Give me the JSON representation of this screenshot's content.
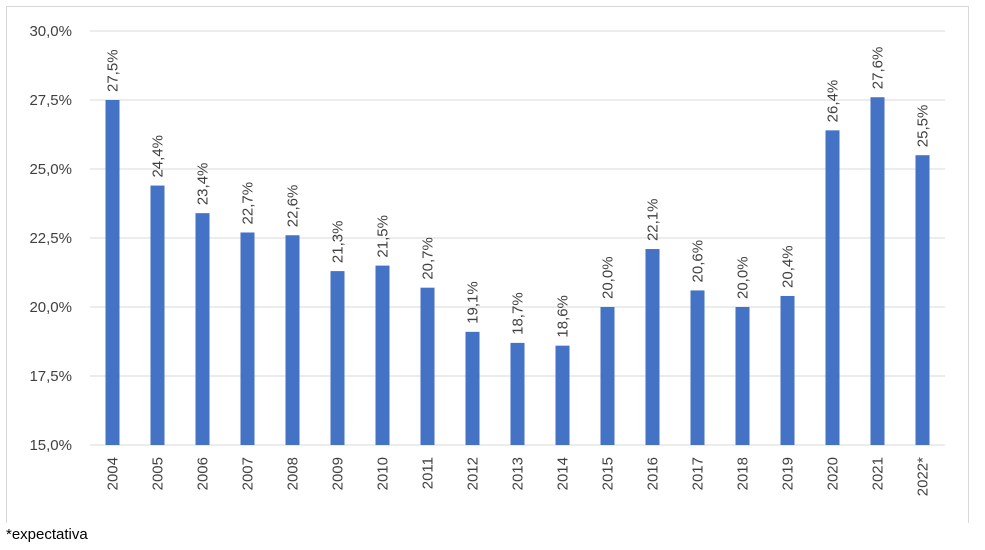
{
  "colors": {
    "bar": "#4472c4",
    "grid": "#d9d9d9",
    "text": "#404040"
  },
  "footnote": "*expectativa",
  "chart_data": {
    "type": "bar",
    "categories": [
      "2004",
      "2005",
      "2006",
      "2007",
      "2008",
      "2009",
      "2010",
      "2011",
      "2012",
      "2013",
      "2014",
      "2015",
      "2016",
      "2017",
      "2018",
      "2019",
      "2020",
      "2021",
      "2022*"
    ],
    "values": [
      27.5,
      24.4,
      23.4,
      22.7,
      22.6,
      21.3,
      21.5,
      20.7,
      19.1,
      18.7,
      18.6,
      20.0,
      22.1,
      20.6,
      20.0,
      20.4,
      26.4,
      27.6,
      25.5
    ],
    "data_labels": [
      "27,5%",
      "24,4%",
      "23,4%",
      "22,7%",
      "22,6%",
      "21,3%",
      "21,5%",
      "20,7%",
      "19,1%",
      "18,7%",
      "18,6%",
      "20,0%",
      "22,1%",
      "20,6%",
      "20,0%",
      "20,4%",
      "26,4%",
      "27,6%",
      "25,5%"
    ],
    "yticks": [
      15.0,
      17.5,
      20.0,
      22.5,
      25.0,
      27.5,
      30.0
    ],
    "ytick_labels": [
      "15,0%",
      "17,5%",
      "20,0%",
      "22,5%",
      "25,0%",
      "27,5%",
      "30,0%"
    ],
    "ylim": [
      15.0,
      30.0
    ],
    "grid": true,
    "legend": "none"
  }
}
